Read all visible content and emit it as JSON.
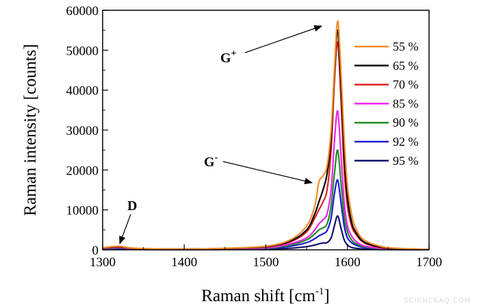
{
  "chart_data": {
    "type": "line",
    "title": "",
    "xlabel": "Raman shift [cm",
    "xlabel_sup": "-1",
    "xlabel_end": "]",
    "ylabel": "Raman intensity [counts]",
    "xlim": [
      1300,
      1700
    ],
    "ylim": [
      0,
      60000
    ],
    "xticks": [
      1300,
      1400,
      1500,
      1600,
      1700
    ],
    "yticks": [
      0,
      10000,
      20000,
      30000,
      40000,
      50000,
      60000
    ],
    "grid": false,
    "legend_position": "top-right",
    "x": [
      1300,
      1320,
      1340,
      1400,
      1450,
      1500,
      1530,
      1550,
      1560,
      1565,
      1570,
      1575,
      1580,
      1584,
      1588,
      1592,
      1596,
      1600,
      1605,
      1610,
      1620,
      1640,
      1660,
      1700
    ],
    "series": [
      {
        "name": "55 %",
        "color": "#f28c28",
        "values": [
          500,
          900,
          400,
          200,
          400,
          900,
          2500,
          6000,
          11000,
          17000,
          18500,
          21000,
          30000,
          45000,
          57300,
          45000,
          28000,
          16000,
          9000,
          5500,
          2500,
          900,
          400,
          100
        ]
      },
      {
        "name": "65 %",
        "color": "#000000",
        "values": [
          400,
          800,
          350,
          200,
          350,
          800,
          2200,
          5000,
          9000,
          12000,
          15000,
          19000,
          28000,
          44000,
          55000,
          42000,
          24000,
          13000,
          7000,
          4500,
          2000,
          700,
          300,
          100
        ]
      },
      {
        "name": "70 %",
        "color": "#e02020",
        "values": [
          400,
          700,
          300,
          150,
          300,
          700,
          2000,
          4500,
          8000,
          10000,
          12000,
          15000,
          25000,
          42000,
          52000,
          38000,
          20000,
          11000,
          6000,
          4000,
          1800,
          600,
          300,
          100
        ]
      },
      {
        "name": "85 %",
        "color": "#ee22ee",
        "values": [
          300,
          600,
          250,
          100,
          250,
          500,
          1500,
          3000,
          5000,
          6500,
          7500,
          9000,
          15000,
          27000,
          34800,
          24000,
          12000,
          6000,
          3500,
          2200,
          1000,
          400,
          200,
          50
        ]
      },
      {
        "name": "90 %",
        "color": "#1e8a1e",
        "values": [
          200,
          500,
          200,
          100,
          200,
          400,
          1200,
          2500,
          4000,
          5000,
          5500,
          6500,
          11000,
          19000,
          25000,
          17000,
          8500,
          4500,
          2500,
          1600,
          800,
          300,
          150,
          50
        ]
      },
      {
        "name": "92 %",
        "color": "#1a1ad8",
        "values": [
          200,
          400,
          150,
          80,
          150,
          300,
          900,
          1800,
          2800,
          3500,
          4000,
          4800,
          8000,
          14000,
          17500,
          12000,
          6000,
          3000,
          1800,
          1200,
          600,
          250,
          100,
          50
        ]
      },
      {
        "name": "95 %",
        "color": "#10106a",
        "values": [
          100,
          300,
          100,
          50,
          100,
          200,
          400,
          800,
          1200,
          1500,
          1700,
          1800,
          3000,
          6000,
          8500,
          5500,
          2500,
          1200,
          600,
          400,
          200,
          100,
          50,
          20
        ]
      }
    ],
    "annotations": [
      {
        "label": "G",
        "sup": "+",
        "target_x": 1588,
        "target_y": 57300
      },
      {
        "label": "G",
        "sup": "-",
        "target_x": 1566,
        "target_y": 17000
      },
      {
        "label": "D",
        "sup": "",
        "target_x": 1320,
        "target_y": 900
      }
    ]
  },
  "watermark": "SCIENCEAQ.COM"
}
